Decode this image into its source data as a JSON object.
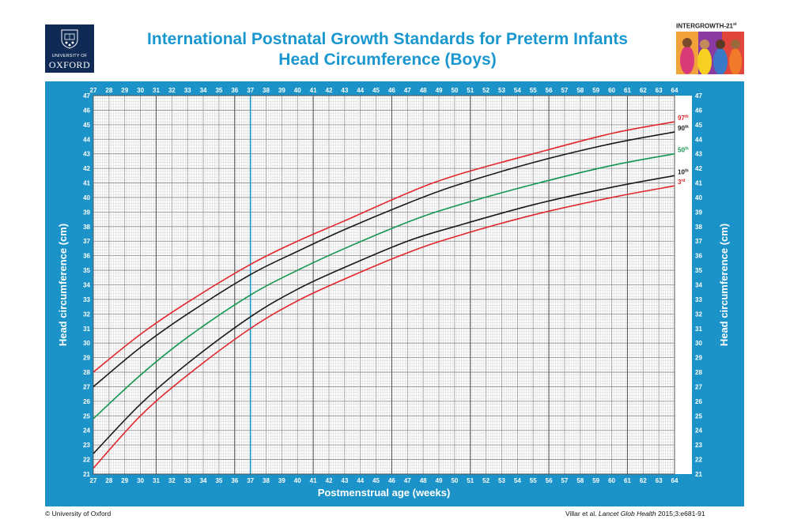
{
  "header": {
    "title_line1": "International Postnatal Growth Standards for Preterm Infants",
    "title_line2": "Head Circumference (Boys)",
    "oxford_logo": {
      "line1": "UNIVERSITY OF",
      "line2": "OXFORD"
    },
    "intergrowth_logo": {
      "name": "INTERGROWTH-21",
      "sup": "st"
    }
  },
  "colors": {
    "frame": "#1b93c9",
    "p3": "#e2262c",
    "p10": "#1a1a1a",
    "p50": "#129650",
    "p90": "#1a1a1a",
    "p97": "#e2262c",
    "marker": "#1b93c9"
  },
  "chart_data": {
    "type": "line",
    "xlabel": "Postmenstrual age (weeks)",
    "ylabel": "Head circumference (cm)",
    "xlim": [
      27,
      64
    ],
    "ylim": [
      21,
      47
    ],
    "x_ticks": [
      27,
      28,
      29,
      30,
      31,
      32,
      33,
      34,
      35,
      36,
      37,
      38,
      39,
      40,
      41,
      42,
      43,
      44,
      45,
      46,
      47,
      48,
      49,
      50,
      51,
      52,
      53,
      54,
      55,
      56,
      57,
      58,
      59,
      60,
      61,
      62,
      63,
      64
    ],
    "y_ticks": [
      21,
      22,
      23,
      24,
      25,
      26,
      27,
      28,
      29,
      30,
      31,
      32,
      33,
      34,
      35,
      36,
      37,
      38,
      39,
      40,
      41,
      42,
      43,
      44,
      45,
      46,
      47
    ],
    "grid": true,
    "reference_line_x": 37,
    "x": [
      27,
      30,
      33,
      37,
      40,
      43,
      47,
      50,
      55,
      60,
      64
    ],
    "series": [
      {
        "key": "p3",
        "num": "3",
        "sup": "rd",
        "values": [
          21.4,
          25.0,
          27.8,
          31.0,
          32.9,
          34.4,
          36.2,
          37.3,
          38.8,
          40.0,
          40.8
        ]
      },
      {
        "key": "p10",
        "num": "10",
        "sup": "th",
        "values": [
          22.4,
          25.8,
          28.6,
          31.8,
          33.7,
          35.2,
          37.0,
          38.0,
          39.5,
          40.7,
          41.5
        ]
      },
      {
        "key": "p50",
        "num": "50",
        "sup": "th",
        "values": [
          24.8,
          27.8,
          30.4,
          33.3,
          35.0,
          36.5,
          38.3,
          39.4,
          40.9,
          42.2,
          43.0
        ]
      },
      {
        "key": "p90",
        "num": "90",
        "sup": "th",
        "values": [
          27.0,
          29.7,
          32.0,
          34.7,
          36.3,
          37.8,
          39.6,
          40.8,
          42.4,
          43.7,
          44.5
        ]
      },
      {
        "key": "p97",
        "num": "97",
        "sup": "th",
        "values": [
          28.0,
          30.6,
          32.8,
          35.4,
          37.0,
          38.4,
          40.3,
          41.5,
          43.0,
          44.4,
          45.2
        ]
      }
    ]
  },
  "footer": {
    "left": "© University of Oxford",
    "right_authors": "Villar et al. ",
    "right_journal": "Lancet Glob Health",
    "right_ref": " 2015;3:e681-91"
  }
}
